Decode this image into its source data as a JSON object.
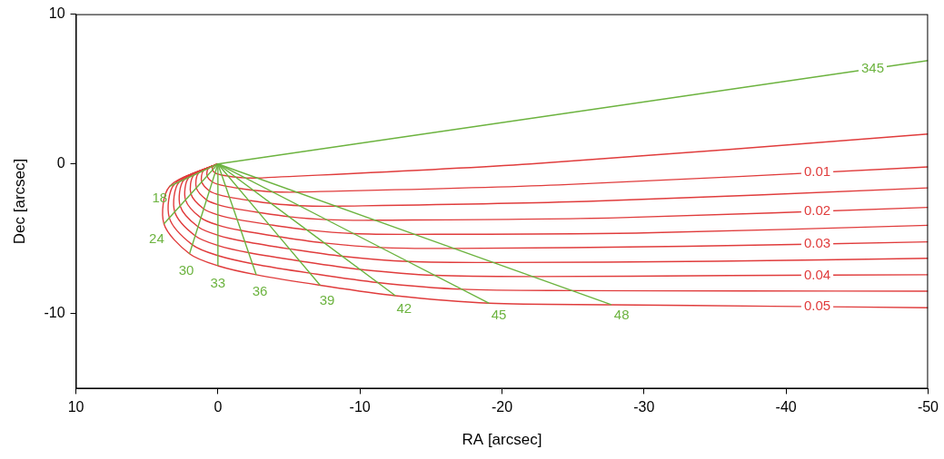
{
  "chart_data": {
    "type": "line",
    "x_label": "RA [arcsec]",
    "y_label": "Dec [arcsec]",
    "xlim": [
      10,
      -50
    ],
    "xticks": [
      10,
      0,
      -10,
      -20,
      -30,
      -40,
      -50
    ],
    "ylim": [
      -15,
      10
    ],
    "yticks": [
      -10,
      0,
      10
    ],
    "grid": false,
    "series": [
      {
        "name": "345",
        "color": "#6cb33f",
        "line_style": "solid",
        "x": [
          0,
          -50
        ],
        "values": [
          0,
          6.9
        ]
      },
      {
        "name": "18",
        "color": "#6cb33f",
        "line_style": "solid",
        "x": [
          0,
          3.4
        ],
        "values": [
          0,
          -1.5
        ]
      },
      {
        "name": "24",
        "color": "#6cb33f",
        "line_style": "solid",
        "x": [
          0,
          3.8
        ],
        "values": [
          0,
          -4
        ]
      },
      {
        "name": "30",
        "color": "#6cb33f",
        "line_style": "solid",
        "x": [
          0,
          2
        ],
        "values": [
          0,
          -6
        ]
      },
      {
        "name": "33",
        "color": "#6cb33f",
        "line_style": "solid",
        "x": [
          0,
          0
        ],
        "values": [
          0,
          -6.8
        ]
      },
      {
        "name": "36",
        "color": "#6cb33f",
        "line_style": "solid",
        "x": [
          0,
          -2.7
        ],
        "values": [
          0,
          -7.4
        ]
      },
      {
        "name": "39",
        "color": "#6cb33f",
        "line_style": "solid",
        "x": [
          0,
          -7.2
        ],
        "values": [
          0,
          -8.1
        ]
      },
      {
        "name": "42",
        "color": "#6cb33f",
        "line_style": "solid",
        "x": [
          0,
          -12.5
        ],
        "values": [
          0,
          -8.8
        ]
      },
      {
        "name": "45",
        "color": "#6cb33f",
        "line_style": "solid",
        "x": [
          0,
          -19.1
        ],
        "values": [
          0,
          -9.3
        ]
      },
      {
        "name": "48",
        "color": "#6cb33f",
        "line_style": "solid",
        "x": [
          0,
          -27.7
        ],
        "values": [
          0,
          -9.4
        ]
      },
      {
        "name": null,
        "color": "#e03c3c",
        "line_style": "solid",
        "x": [
          0,
          0.34,
          0.38,
          0.2,
          0,
          -0.27,
          -0.72,
          -1.25,
          -1.91,
          -2.77,
          -22,
          -50
        ],
        "values": [
          0,
          -0.15,
          -0.4,
          -0.6,
          -0.68,
          -0.74,
          -0.81,
          -0.88,
          -0.93,
          -0.94,
          0.0,
          2.0
        ]
      },
      {
        "name": "0.01",
        "color": "#e03c3c",
        "line_style": "solid",
        "x": [
          0,
          0.68,
          0.76,
          0.4,
          0,
          -0.54,
          -1.44,
          -2.5,
          -3.82,
          -5.54,
          -24,
          -50
        ],
        "values": [
          0,
          -0.3,
          -0.8,
          -1.2,
          -1.36,
          -1.48,
          -1.62,
          -1.76,
          -1.86,
          -1.88,
          -1.4,
          -0.2
        ]
      },
      {
        "name": null,
        "color": "#e03c3c",
        "line_style": "solid",
        "x": [
          0,
          1.02,
          1.14,
          0.6,
          0,
          -0.81,
          -2.16,
          -3.75,
          -5.73,
          -8.31,
          -26,
          -50
        ],
        "values": [
          0,
          -0.45,
          -1.2,
          -1.8,
          -2.04,
          -2.22,
          -2.43,
          -2.64,
          -2.79,
          -2.82,
          -2.5,
          -1.6
        ]
      },
      {
        "name": "0.02",
        "color": "#e03c3c",
        "line_style": "solid",
        "x": [
          0,
          1.36,
          1.52,
          0.8,
          0,
          -1.08,
          -2.88,
          -5,
          -7.64,
          -11.08,
          -28,
          -50
        ],
        "values": [
          0,
          -0.6,
          -1.6,
          -2.4,
          -2.72,
          -2.96,
          -3.24,
          -3.52,
          -3.72,
          -3.76,
          -3.6,
          -2.9
        ]
      },
      {
        "name": null,
        "color": "#e03c3c",
        "line_style": "solid",
        "x": [
          0,
          1.7,
          1.9,
          1,
          0,
          -1.35,
          -3.6,
          -6.25,
          -9.55,
          -13.85,
          -30,
          -50
        ],
        "values": [
          0,
          -0.75,
          -2,
          -3,
          -3.4,
          -3.7,
          -4.05,
          -4.4,
          -4.65,
          -4.7,
          -4.6,
          -4.1
        ]
      },
      {
        "name": "0.03",
        "color": "#e03c3c",
        "line_style": "solid",
        "x": [
          0,
          2.04,
          2.28,
          1.2,
          0,
          -1.62,
          -4.32,
          -7.5,
          -11.46,
          -16.62,
          -33,
          -50
        ],
        "values": [
          0,
          -0.9,
          -2.4,
          -3.6,
          -4.08,
          -4.44,
          -4.86,
          -5.28,
          -5.58,
          -5.64,
          -5.5,
          -5.2
        ]
      },
      {
        "name": null,
        "color": "#e03c3c",
        "line_style": "solid",
        "x": [
          0,
          2.38,
          2.66,
          1.4,
          0,
          -1.89,
          -5.04,
          -8.75,
          -13.37,
          -19.39,
          -35,
          -50
        ],
        "values": [
          0,
          -1.05,
          -2.8,
          -4.2,
          -4.76,
          -5.18,
          -5.67,
          -6.16,
          -6.51,
          -6.58,
          -6.5,
          -6.3
        ]
      },
      {
        "name": "0.04",
        "color": "#e03c3c",
        "line_style": "solid",
        "x": [
          0,
          2.72,
          3.04,
          1.6,
          0,
          -2.16,
          -5.76,
          -10,
          -15.28,
          -22.16,
          -36,
          -50
        ],
        "values": [
          0,
          -1.2,
          -3.2,
          -4.8,
          -5.44,
          -5.92,
          -6.48,
          -7.04,
          -7.44,
          -7.52,
          -7.45,
          -7.4
        ]
      },
      {
        "name": null,
        "color": "#e03c3c",
        "line_style": "solid",
        "x": [
          0,
          3.06,
          3.42,
          1.8,
          0,
          -2.43,
          -6.48,
          -11.25,
          -17.19,
          -24.93,
          -37,
          -50
        ],
        "values": [
          0,
          -1.35,
          -3.6,
          -5.4,
          -6.12,
          -6.66,
          -7.29,
          -7.92,
          -8.37,
          -8.46,
          -8.48,
          -8.5
        ]
      },
      {
        "name": "0.05",
        "color": "#e03c3c",
        "line_style": "solid",
        "x": [
          0,
          3.4,
          3.8,
          2,
          0,
          -2.7,
          -7.2,
          -12.5,
          -19.1,
          -27.7,
          -39,
          -50
        ],
        "values": [
          0,
          -1.5,
          -4,
          -6,
          -6.8,
          -7.4,
          -8.1,
          -8.8,
          -9.3,
          -9.4,
          -9.5,
          -9.6
        ]
      }
    ]
  }
}
